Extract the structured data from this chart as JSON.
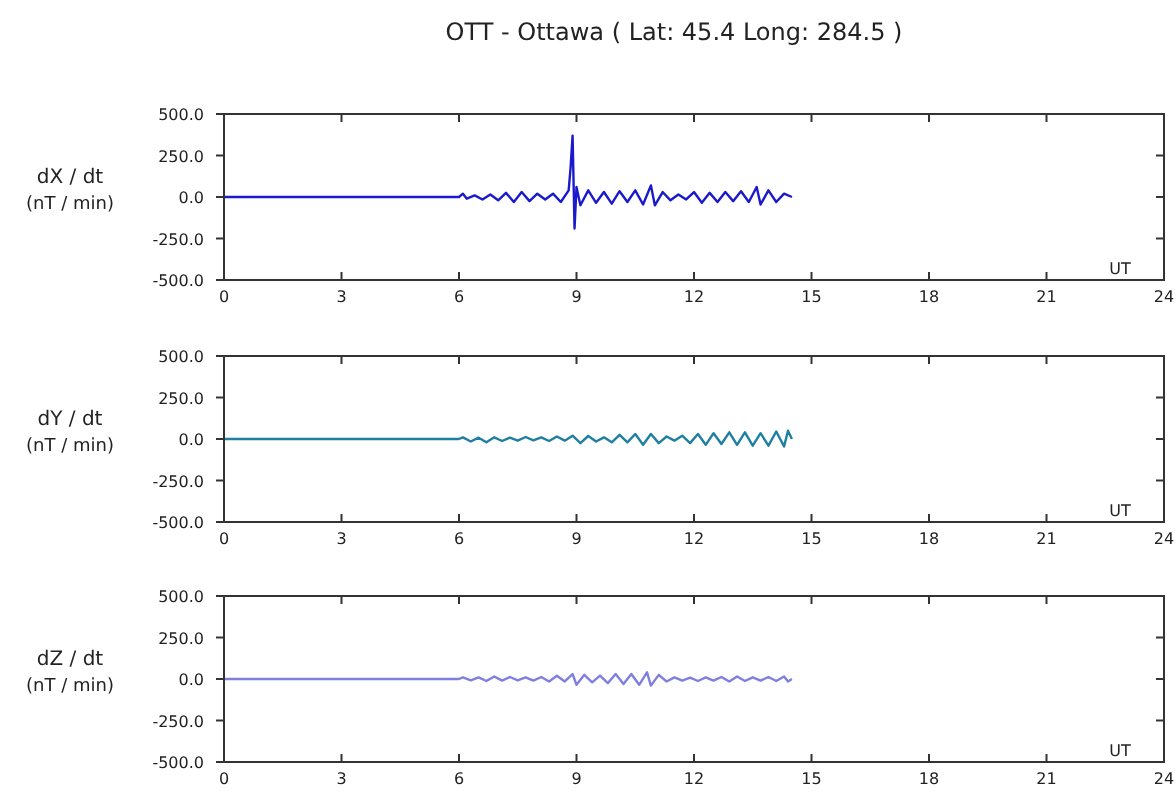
{
  "chart_data": [
    {
      "type": "line",
      "title": "OTT - Ottawa ( Lat: 45.4  Long: 284.5 )",
      "ylabel": "dX / dt\n(nT / min)",
      "annotations": [
        "UT"
      ],
      "grid": false,
      "xlim": [
        0,
        24
      ],
      "xticks": [
        0,
        3,
        6,
        9,
        12,
        15,
        18,
        21,
        24
      ],
      "ylim": [
        -500,
        500
      ],
      "yticks": [
        {
          "value": -500,
          "label": "-500.0"
        },
        {
          "value": -250,
          "label": "-250.0"
        },
        {
          "value": 0,
          "label": "0.0"
        },
        {
          "value": 250,
          "label": "250.0"
        },
        {
          "value": 500,
          "label": "500.0"
        }
      ],
      "x": [
        0,
        6,
        6.1,
        6.2,
        6.4,
        6.6,
        6.8,
        7,
        7.2,
        7.4,
        7.6,
        7.8,
        8,
        8.2,
        8.4,
        8.6,
        8.8,
        8.85,
        8.9,
        8.95,
        9,
        9.1,
        9.3,
        9.5,
        9.7,
        9.9,
        10.1,
        10.3,
        10.5,
        10.7,
        10.9,
        11,
        11.2,
        11.4,
        11.6,
        11.8,
        12,
        12.2,
        12.4,
        12.6,
        12.8,
        13,
        13.2,
        13.4,
        13.6,
        13.7,
        13.9,
        14.1,
        14.3,
        14.5
      ],
      "series": [
        {
          "color": "#1a1acc",
          "values": [
            0,
            0,
            20,
            -10,
            10,
            -15,
            15,
            -20,
            25,
            -30,
            30,
            -25,
            20,
            -15,
            20,
            -30,
            40,
            180,
            370,
            -190,
            60,
            -50,
            40,
            -35,
            30,
            -40,
            35,
            -30,
            40,
            -45,
            70,
            -50,
            30,
            -20,
            15,
            -15,
            30,
            -35,
            25,
            -30,
            30,
            -25,
            35,
            -30,
            60,
            -45,
            40,
            -30,
            20,
            0
          ]
        }
      ]
    },
    {
      "type": "line",
      "ylabel": "dY / dt\n(nT / min)",
      "annotations": [
        "UT"
      ],
      "grid": false,
      "xlim": [
        0,
        24
      ],
      "xticks": [
        0,
        3,
        6,
        9,
        12,
        15,
        18,
        21,
        24
      ],
      "ylim": [
        -500,
        500
      ],
      "yticks": [
        {
          "value": -500,
          "label": "-500.0"
        },
        {
          "value": -250,
          "label": "-250.0"
        },
        {
          "value": 0,
          "label": "0.0"
        },
        {
          "value": 250,
          "label": "250.0"
        },
        {
          "value": 500,
          "label": "500.0"
        }
      ],
      "x": [
        0,
        6,
        6.1,
        6.3,
        6.5,
        6.7,
        6.9,
        7.1,
        7.3,
        7.5,
        7.7,
        7.9,
        8.1,
        8.3,
        8.5,
        8.7,
        8.9,
        9.1,
        9.3,
        9.5,
        9.7,
        9.9,
        10.1,
        10.3,
        10.5,
        10.7,
        10.9,
        11.1,
        11.3,
        11.5,
        11.7,
        11.9,
        12.1,
        12.3,
        12.5,
        12.7,
        12.9,
        13.1,
        13.3,
        13.5,
        13.7,
        13.9,
        14.1,
        14.3,
        14.4,
        14.5
      ],
      "series": [
        {
          "color": "#1e7fa0",
          "values": [
            0,
            0,
            10,
            -15,
            8,
            -20,
            10,
            -12,
            8,
            -10,
            12,
            -8,
            10,
            -12,
            15,
            -10,
            20,
            -25,
            18,
            -15,
            10,
            -20,
            25,
            -20,
            30,
            -35,
            30,
            -25,
            15,
            -10,
            20,
            -25,
            30,
            -35,
            35,
            -30,
            40,
            -35,
            40,
            -40,
            35,
            -40,
            45,
            -45,
            50,
            0
          ]
        }
      ]
    },
    {
      "type": "line",
      "ylabel": "dZ / dt\n(nT / min)",
      "annotations": [
        "UT"
      ],
      "grid": false,
      "xlim": [
        0,
        24
      ],
      "xticks": [
        0,
        3,
        6,
        9,
        12,
        15,
        18,
        21,
        24
      ],
      "ylim": [
        -500,
        500
      ],
      "yticks": [
        {
          "value": -500,
          "label": "-500.0"
        },
        {
          "value": -250,
          "label": "-250.0"
        },
        {
          "value": 0,
          "label": "0.0"
        },
        {
          "value": 250,
          "label": "250.0"
        },
        {
          "value": 500,
          "label": "500.0"
        }
      ],
      "x": [
        0,
        6,
        6.1,
        6.3,
        6.5,
        6.7,
        6.9,
        7.1,
        7.3,
        7.5,
        7.7,
        7.9,
        8.1,
        8.3,
        8.5,
        8.7,
        8.9,
        9,
        9.2,
        9.4,
        9.6,
        9.8,
        10,
        10.2,
        10.4,
        10.6,
        10.8,
        10.9,
        11.1,
        11.3,
        11.5,
        11.7,
        11.9,
        12.1,
        12.3,
        12.5,
        12.7,
        12.9,
        13.1,
        13.3,
        13.5,
        13.7,
        13.9,
        14.1,
        14.3,
        14.4,
        14.5
      ],
      "series": [
        {
          "color": "#7f7fe0",
          "values": [
            0,
            0,
            10,
            -8,
            10,
            -12,
            15,
            -10,
            12,
            -8,
            10,
            -10,
            12,
            -15,
            20,
            -15,
            30,
            -35,
            25,
            -20,
            20,
            -25,
            30,
            -30,
            30,
            -35,
            40,
            -40,
            25,
            -15,
            10,
            -10,
            8,
            -12,
            10,
            -10,
            12,
            -15,
            15,
            -12,
            10,
            -10,
            12,
            -12,
            15,
            -15,
            0
          ]
        }
      ]
    }
  ]
}
